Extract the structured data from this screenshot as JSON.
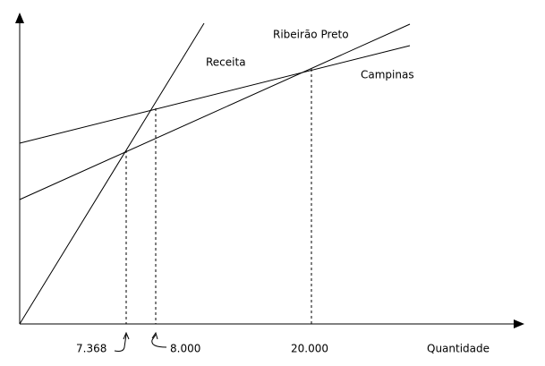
{
  "line_labels": {
    "receita": "Receita",
    "ribeirao_preto": "Ribeirão Preto",
    "campinas": "Campinas"
  },
  "axis": {
    "x_labels": [
      "7.368",
      "8.000",
      "20.000"
    ],
    "x_title": "Quantidade"
  }
}
